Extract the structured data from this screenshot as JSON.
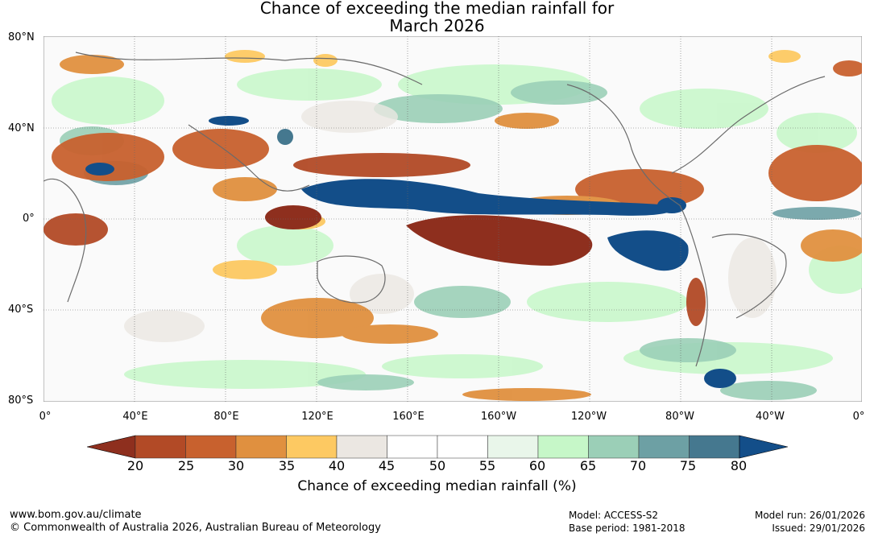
{
  "title_line1": "Chance of exceeding the median rainfall for",
  "title_line2": "March 2026",
  "lat_ticks": [
    "80°N",
    "40°N",
    "0°",
    "40°S",
    "80°S"
  ],
  "lon_ticks": [
    "0°",
    "40°E",
    "80°E",
    "120°E",
    "160°E",
    "160°W",
    "120°W",
    "80°W",
    "40°W",
    "0°"
  ],
  "colorbar": {
    "title": "Chance of exceeding median rainfall (%)",
    "labels": [
      "20",
      "25",
      "30",
      "35",
      "40",
      "45",
      "50",
      "55",
      "60",
      "65",
      "70",
      "75",
      "80"
    ],
    "colors": [
      "#8e2f1e",
      "#b24a26",
      "#c8612e",
      "#e0903f",
      "#fdc962",
      "#ebe7e2",
      "#ffffff",
      "#ffffff",
      "#e9f6ea",
      "#c6f7c8",
      "#9bcfb7",
      "#6da0a4",
      "#45788f",
      "#134e89"
    ]
  },
  "footer": {
    "url": "www.bom.gov.au/climate",
    "copyright": "© Commonwealth of Australia 2026, Australian Bureau of Meteorology",
    "model": "Model: ACCESS-S2",
    "base_period": "Base period: 1981-2018",
    "model_run": "Model run: 26/01/2026",
    "issued": "Issued: 29/01/2026"
  }
}
